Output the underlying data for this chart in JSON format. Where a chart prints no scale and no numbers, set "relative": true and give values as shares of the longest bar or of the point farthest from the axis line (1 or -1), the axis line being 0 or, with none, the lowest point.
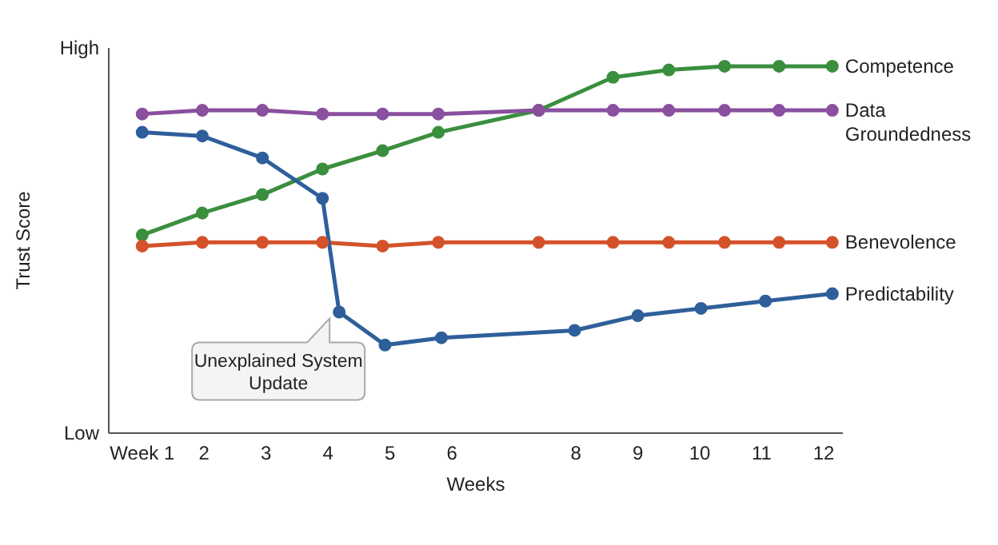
{
  "chart_data": {
    "type": "line",
    "xlabel": "Weeks",
    "ylabel": "Trust Score",
    "relative": true,
    "xlim": [
      0.46,
      12.31
    ],
    "xticks": [
      {
        "value": 1,
        "label": "Week 1"
      },
      2,
      3,
      4,
      5,
      6,
      8,
      9,
      10,
      11,
      12
    ],
    "grid": false,
    "legend": false,
    "marker": "circle",
    "line_style": "solid",
    "series": [
      {
        "name": "Competence",
        "color": "#3a8f3e",
        "x": [
          1,
          1.97,
          2.94,
          3.91,
          4.88,
          5.78,
          7.4,
          8.6,
          9.5,
          10.4,
          11.28,
          12.14
        ],
        "values": [
          0.54,
          0.6,
          0.65,
          0.72,
          0.77,
          0.82,
          0.88,
          0.97,
          0.99,
          1,
          1,
          1
        ]
      },
      {
        "name": "Data Groundedness",
        "color": "#8a4f9e",
        "x": [
          1,
          1.97,
          2.94,
          3.91,
          4.88,
          5.78,
          7.4,
          8.6,
          9.5,
          10.4,
          11.28,
          12.14
        ],
        "values": [
          0.87,
          0.88,
          0.88,
          0.87,
          0.87,
          0.87,
          0.88,
          0.88,
          0.88,
          0.88,
          0.88,
          0.88
        ]
      },
      {
        "name": "Benevolence",
        "color": "#d4522a",
        "x": [
          1,
          1.97,
          2.94,
          3.91,
          4.88,
          5.78,
          7.4,
          8.6,
          9.5,
          10.4,
          11.28,
          12.14
        ],
        "values": [
          0.51,
          0.52,
          0.52,
          0.52,
          0.51,
          0.52,
          0.52,
          0.52,
          0.52,
          0.52,
          0.52,
          0.52
        ]
      },
      {
        "name": "Predictability",
        "color": "#2f5f9a",
        "x": [
          1,
          1.97,
          2.94,
          3.91,
          4.18,
          4.92,
          5.83,
          7.98,
          9,
          10.02,
          11.06,
          12.14
        ],
        "values": [
          0.82,
          0.81,
          0.75,
          0.64,
          0.33,
          0.24,
          0.26,
          0.28,
          0.32,
          0.34,
          0.36,
          0.38
        ]
      }
    ],
    "annotations": [
      "High",
      "Low",
      {
        "text": "Unexplained System Update",
        "x": 4.18,
        "y": 0.33
      }
    ]
  }
}
